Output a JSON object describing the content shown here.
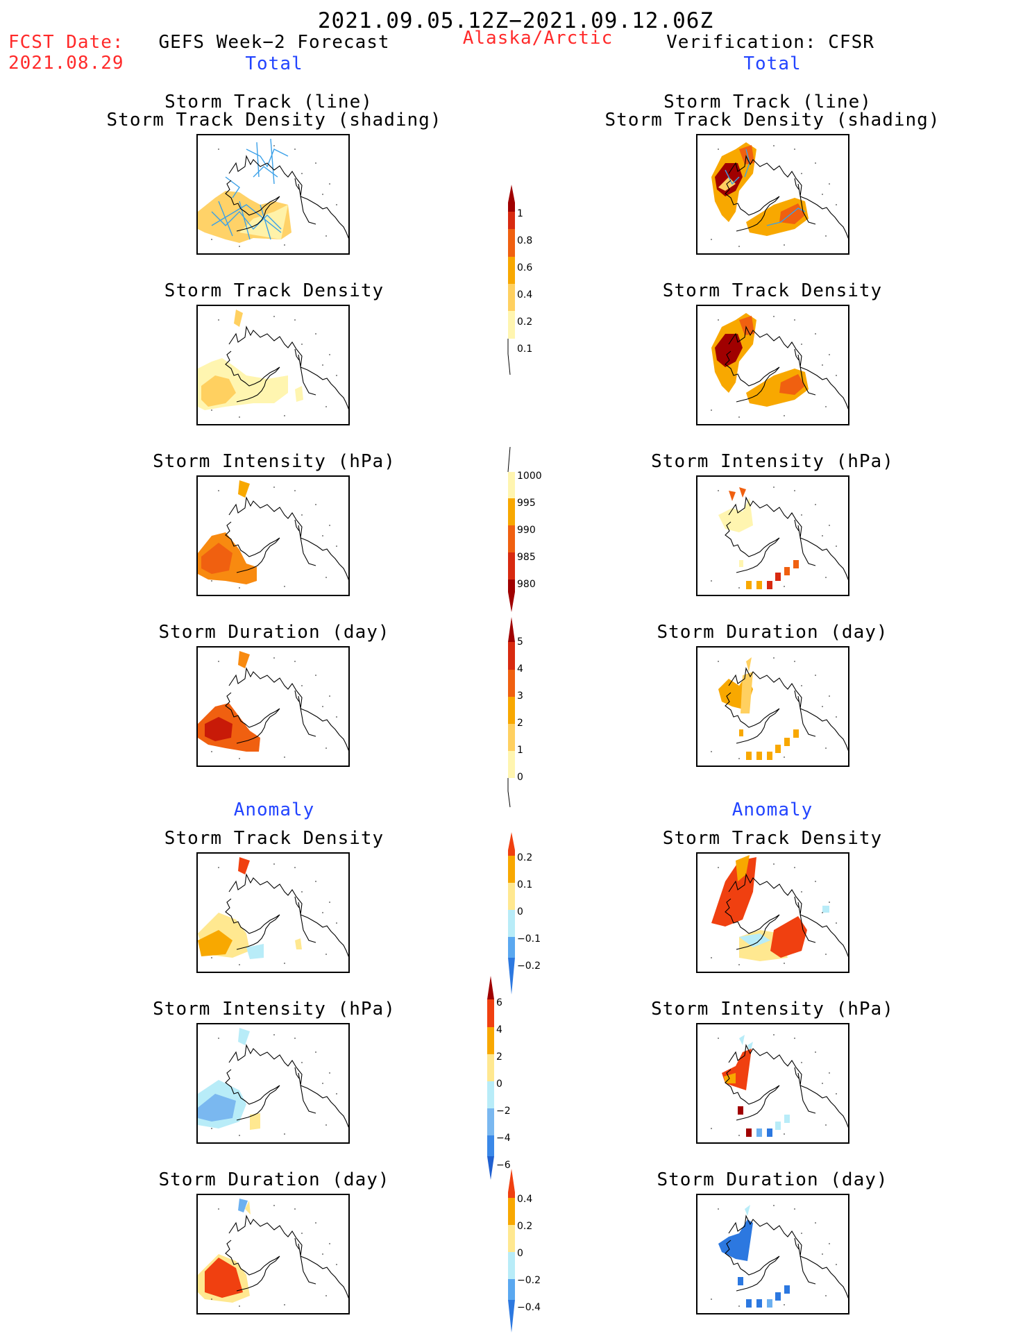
{
  "header": {
    "main_title": "2021.09.05.12Z−2021.09.12.06Z",
    "fcst_date_label": "FCST Date:",
    "fcst_date_value": "2021.08.29",
    "left_title": "GEFS Week−2 Forecast",
    "region": "Alaska/Arctic",
    "right_title": "Verification: CFSR",
    "left_total": "Total",
    "right_total": "Total",
    "left_anomaly": "Anomaly",
    "right_anomaly": "Anomaly"
  },
  "panels": {
    "track_line": "Storm Track (line)",
    "track_shading": "Storm Track Density (shading)",
    "density": "Storm Track Density",
    "intensity": "Storm Intensity (hPa)",
    "duration": "Storm Duration (day)"
  },
  "colorbars": {
    "density_total": {
      "labels": [
        "1",
        "0.8",
        "0.6",
        "0.4",
        "0.2",
        "0.1"
      ]
    },
    "intensity_total": {
      "labels": [
        "1000",
        "995",
        "990",
        "985",
        "980"
      ]
    },
    "duration_total": {
      "labels": [
        "5",
        "4",
        "3",
        "2",
        "1",
        "0"
      ]
    },
    "density_anom": {
      "labels": [
        "0.2",
        "0.1",
        "0",
        "−0.1",
        "−0.2"
      ]
    },
    "intensity_anom": {
      "labels": [
        "6",
        "4",
        "2",
        "0",
        "−2",
        "−4",
        "−6"
      ]
    },
    "duration_anom": {
      "labels": [
        "0.4",
        "0.2",
        "0",
        "−0.2",
        "−0.4"
      ]
    }
  },
  "colors": {
    "red_text": "#ff2a2a",
    "blue_text": "#2244ff",
    "pale_yellow": "#fff5b0",
    "light_orange": "#ffd060",
    "orange": "#f8a800",
    "dark_orange": "#f06a10",
    "red": "#e03010",
    "dark_red": "#a00000",
    "light_blue": "#b8ecf8",
    "mid_blue": "#6cb0f0",
    "blue": "#2c78e0",
    "track_blue": "#3aa0e8"
  }
}
